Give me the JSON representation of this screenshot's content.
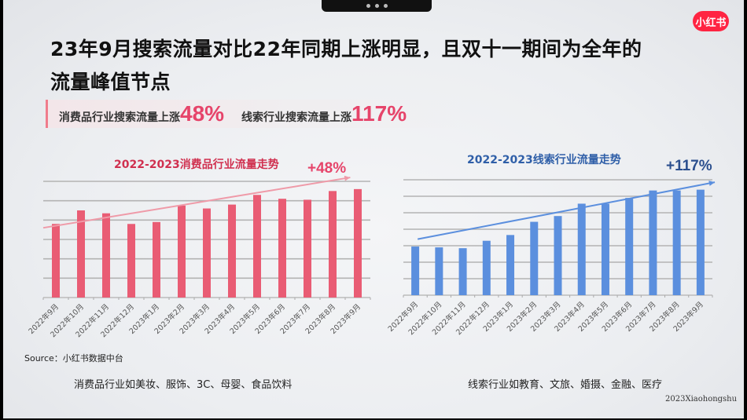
{
  "window": {
    "menu_dots": "•••"
  },
  "brand": {
    "logo_text": "小红书",
    "logo_color": "#ff2442"
  },
  "title": "23年9月搜索流量对比22年同期上涨明显，且双十一期间为全年的流量峰值节点",
  "highlights": [
    {
      "label": "消费品行业搜索流量上涨",
      "value": "48%"
    },
    {
      "label": "线索行业搜索流量上涨",
      "value": "117%"
    }
  ],
  "source": "Source：小红书数据中台",
  "captions": {
    "left": "消费品行业如美妆、服饰、3C、母婴、食品饮料",
    "right": "线索行业如教育、文旅、婚摄、金融、医疗"
  },
  "copyright": "2023Xiaohongshu",
  "colors": {
    "consumer": "#e95c74",
    "consumer_title": "#d0304f",
    "leads": "#5b8fde",
    "leads_title": "#2f5fa8",
    "highlight_value": "#e6446a"
  },
  "chart_data": [
    {
      "type": "bar",
      "title": "2022-2023消费品行业流量走势",
      "annotation": "+48%",
      "categories": [
        "2022年9月",
        "2022年10月",
        "2022年11月",
        "2022年12月",
        "2023年1月",
        "2023年2月",
        "2023年3月",
        "2023年4月",
        "2023年5月",
        "2023年6月",
        "2023年7月",
        "2023年8月",
        "2023年9月"
      ],
      "values": [
        3.8,
        4.5,
        4.35,
        3.8,
        3.9,
        4.75,
        4.6,
        4.8,
        5.3,
        5.1,
        5.05,
        5.5,
        5.6
      ],
      "xlabel": "",
      "ylabel": "",
      "ylim": [
        0,
        6
      ],
      "grid": true,
      "y_tick_labels_shown": false,
      "trend_arrow": true,
      "color": "#e95c74"
    },
    {
      "type": "bar",
      "title": "2022-2023线索行业流量走势",
      "annotation": "+117%",
      "categories": [
        "2022年9月",
        "2022年10月",
        "2022年11月",
        "2022年12月",
        "2023年1月",
        "2023年2月",
        "2023年3月",
        "2023年4月",
        "2023年5月",
        "2023年6月",
        "2023年7月",
        "2023年8月",
        "2023年9月"
      ],
      "values": [
        2.95,
        2.9,
        2.85,
        3.3,
        3.65,
        4.45,
        4.8,
        5.55,
        5.55,
        5.9,
        6.35,
        6.35,
        6.4
      ],
      "xlabel": "",
      "ylabel": "",
      "ylim": [
        0,
        7
      ],
      "grid": true,
      "y_tick_labels_shown": false,
      "trend_arrow": true,
      "color": "#5b8fde"
    }
  ]
}
